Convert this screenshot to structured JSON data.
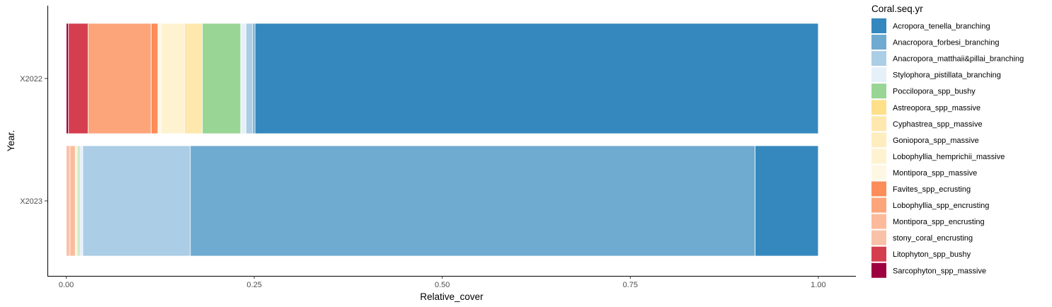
{
  "chart_data": {
    "type": "bar",
    "orientation": "horizontal",
    "stacked": true,
    "xlabel": "Relative_cover",
    "ylabel": "Year.",
    "xlim": [
      -0.025,
      1.05
    ],
    "x_ticks": [
      0.0,
      0.25,
      0.5,
      0.75,
      1.0
    ],
    "x_tick_labels": [
      "0.00",
      "0.25",
      "0.50",
      "0.75",
      "1.00"
    ],
    "categories": [
      "X2022",
      "X2023"
    ],
    "grid": false,
    "legend": {
      "title": "Coral.seq.yr",
      "position": "right"
    },
    "series": [
      {
        "name": "Sarcophyton_spp_massive",
        "color": "#9E0142",
        "values": [
          0.003,
          0.0
        ]
      },
      {
        "name": "Litophyton_spp_bushy",
        "color": "#D53E4F",
        "values": [
          0.026,
          0.0
        ]
      },
      {
        "name": "stony_coral_encrusting",
        "color": "#F8C2A8",
        "values": [
          0.0,
          0.005
        ]
      },
      {
        "name": "Montipora_spp_encrusting",
        "color": "#FDBA9A",
        "values": [
          0.0,
          0.007
        ]
      },
      {
        "name": "Lobophyllia_spp_encrusting",
        "color": "#FCA57B",
        "values": [
          0.084,
          0.0
        ]
      },
      {
        "name": "Favites_spp_ecrusting",
        "color": "#FC8D59",
        "values": [
          0.009,
          0.0
        ]
      },
      {
        "name": "Montipora_spp_massive",
        "color": "#FEF7E3",
        "values": [
          0.004,
          0.0
        ]
      },
      {
        "name": "Lobophyllia_hemprichii_massive",
        "color": "#FEF2D1",
        "values": [
          0.031,
          0.002
        ]
      },
      {
        "name": "Goniopora_spp_massive",
        "color": "#FEEDBF",
        "values": [
          0.0,
          0.0
        ]
      },
      {
        "name": "Cyphastrea_spp_massive",
        "color": "#FEE8AD",
        "values": [
          0.024,
          0.0
        ]
      },
      {
        "name": "Astreopora_spp_massive",
        "color": "#FEE08B",
        "values": [
          0.0,
          0.002
        ]
      },
      {
        "name": "Poccilopora_spp_bushy",
        "color": "#99D594",
        "values": [
          0.051,
          0.002
        ]
      },
      {
        "name": "Stylophora_pistillata_branching",
        "color": "#E6F0F8",
        "values": [
          0.007,
          0.004
        ]
      },
      {
        "name": "Anacropora_matthaii&pillai_branching",
        "color": "#ABCDE5",
        "values": [
          0.009,
          0.143
        ]
      },
      {
        "name": "Anacropora_forbesi_branching",
        "color": "#6FAAD0",
        "values": [
          0.003,
          0.751
        ]
      },
      {
        "name": "Acropora_tenella_branching",
        "color": "#3488BE",
        "values": [
          0.749,
          0.084
        ]
      }
    ]
  }
}
